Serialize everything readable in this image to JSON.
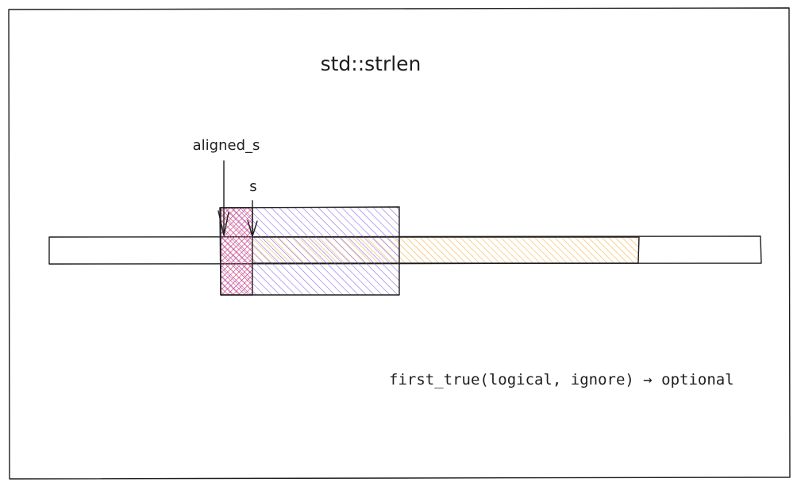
{
  "diagram": {
    "title": "std::strlen",
    "labels": {
      "aligned_pointer": "aligned_s",
      "pointer": "s"
    },
    "caption": "first_true(logical, ignore) → optional",
    "colors": {
      "stroke": "#1e1e1e",
      "register_fill": "#7048e8",
      "ignored_fill": "#e64980",
      "string_fill": "#fab005",
      "background": "#ffffff"
    }
  }
}
